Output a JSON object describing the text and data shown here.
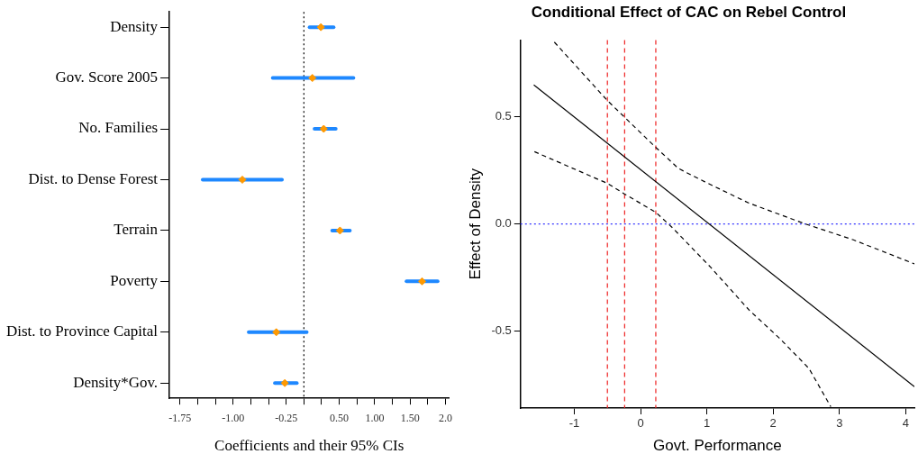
{
  "chart_data": [
    {
      "type": "scatter",
      "orientation": "horizontal",
      "xlabel": "Coefficients and their 95% CIs",
      "categories": [
        "Density",
        "Gov. Score 2005",
        "No. Families",
        "Dist. to Dense Forest",
        "Terrain",
        "Poverty",
        "Dist. to Province Capital",
        "Density*Gov."
      ],
      "series": [
        {
          "color": "#ff9900",
          "values": [
            0.24,
            0.12,
            0.28,
            -0.87,
            0.51,
            1.67,
            -0.39,
            -0.27
          ],
          "errors": [
            [
              0.08,
              0.42
            ],
            [
              -0.44,
              0.7
            ],
            [
              0.15,
              0.45
            ],
            [
              -1.43,
              -0.31
            ],
            [
              0.4,
              0.65
            ],
            [
              1.45,
              1.89
            ],
            [
              -0.78,
              0.04
            ],
            [
              -0.41,
              -0.1
            ]
          ]
        }
      ],
      "xlim": [
        -1.9,
        2.05
      ],
      "xticks": [
        {
          "value": -1.75,
          "label": "-1.75"
        },
        {
          "value": -1.5,
          "label": null
        },
        {
          "value": -1.25,
          "label": null
        },
        {
          "value": -1.0,
          "label": "-1.00"
        },
        {
          "value": -0.75,
          "label": null
        },
        {
          "value": -0.5,
          "label": null
        },
        {
          "value": -0.25,
          "label": "-0.25"
        },
        {
          "value": 0,
          "label": null
        },
        {
          "value": 0.25,
          "label": null
        },
        {
          "value": 0.5,
          "label": "0.50"
        },
        {
          "value": 0.75,
          "label": null
        },
        {
          "value": 1.0,
          "label": "1.00"
        },
        {
          "value": 1.25,
          "label": null
        },
        {
          "value": 1.5,
          "label": "1.50"
        },
        {
          "value": 1.75,
          "label": null
        },
        {
          "value": 2.0,
          "label": "2.0"
        }
      ],
      "ref_lines": [
        {
          "axis": "x",
          "value": 0,
          "color": "#000000",
          "line_style": "dotted"
        }
      ],
      "marker": "diamond",
      "grid": false
    },
    {
      "type": "line",
      "title": "Conditional Effect of CAC on Rebel Control",
      "xlabel": "Govt. Performance",
      "ylabel": "Effect of Density",
      "series": [
        {
          "color": "#000000",
          "line_style": "solid",
          "x": [
            -1.61,
            4.13
          ],
          "values": [
            0.65,
            -0.76
          ]
        },
        {
          "color": "#000000",
          "line_style": "dashed",
          "x": [
            -1.3,
            -0.5,
            0.23,
            0.57,
            0.97,
            1.64,
            2.49,
            3.21,
            4.13
          ],
          "values": [
            0.85,
            0.577,
            0.358,
            0.26,
            0.197,
            0.097,
            0.0,
            -0.074,
            -0.186
          ]
        },
        {
          "color": "#000000",
          "line_style": "dashed",
          "x": [
            -1.6,
            -0.5,
            -0.24,
            0.23,
            0.48,
            1.06,
            1.64,
            2.09,
            2.54,
            2.87
          ],
          "values": [
            0.338,
            0.19,
            0.14,
            0.055,
            -0.017,
            -0.203,
            -0.403,
            -0.532,
            -0.675,
            -0.854
          ]
        }
      ],
      "xlim": [
        -1.81,
        4.13
      ],
      "xticks": [
        -1,
        0,
        1,
        2,
        3,
        4
      ],
      "ylim": [
        -0.86,
        0.86
      ],
      "yticks": [
        -0.5,
        {
          "value": 0,
          "label": "0.0"
        },
        0.5
      ],
      "ref_lines": [
        {
          "axis": "x",
          "value": -0.5,
          "color": "#ee2222",
          "line_style": "dashed"
        },
        {
          "axis": "x",
          "value": -0.24,
          "color": "#ee2222",
          "line_style": "dashed"
        },
        {
          "axis": "x",
          "value": 0.23,
          "color": "#ee2222",
          "line_style": "dashed"
        },
        {
          "axis": "y",
          "value": 0,
          "color": "#3333ff",
          "line_style": "dotted"
        }
      ],
      "marker": "none",
      "grid": false
    }
  ]
}
